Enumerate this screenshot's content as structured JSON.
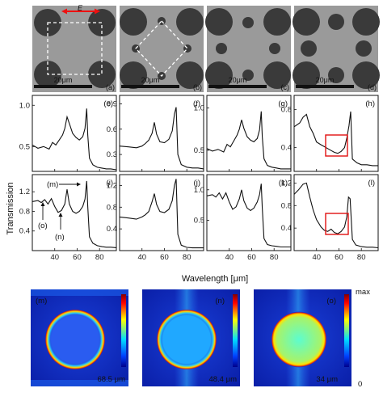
{
  "sem_panels": [
    {
      "tag": "(a)",
      "scale": "20μm",
      "e_label": "E"
    },
    {
      "tag": "(b)",
      "scale": "20μm"
    },
    {
      "tag": "(c)",
      "scale": "20μm"
    },
    {
      "tag": "(d)",
      "scale": "20μm"
    }
  ],
  "axis": {
    "y_title": "Transmission",
    "x_title": "Wavelength [μm]",
    "x_ticks": [
      "40",
      "60",
      "80"
    ]
  },
  "chart_data": [
    {
      "id": "e",
      "tag": "(e)",
      "type": "line",
      "xlim": [
        20,
        95
      ],
      "ylim": [
        0.2,
        1.12
      ],
      "yticks": [
        0.5,
        1.0
      ],
      "x": [
        20,
        25,
        30,
        35,
        38,
        41,
        44,
        47,
        49,
        51,
        53,
        56,
        59,
        62,
        65,
        67,
        68.5,
        69.5,
        71,
        74,
        78,
        82,
        86,
        90,
        95
      ],
      "y": [
        0.52,
        0.48,
        0.5,
        0.47,
        0.55,
        0.52,
        0.58,
        0.64,
        0.72,
        0.86,
        0.78,
        0.66,
        0.61,
        0.58,
        0.62,
        0.72,
        0.96,
        0.64,
        0.36,
        0.28,
        0.25,
        0.24,
        0.23,
        0.23,
        0.22
      ]
    },
    {
      "id": "f",
      "tag": "(f)",
      "type": "line",
      "xlim": [
        20,
        95
      ],
      "ylim": [
        0.1,
        1.0
      ],
      "yticks": [
        0.3,
        0.6,
        0.9
      ],
      "x": [
        20,
        28,
        35,
        40,
        43,
        46,
        49,
        51,
        53,
        56,
        60,
        64,
        67,
        69,
        70.5,
        72,
        75,
        80,
        85,
        90,
        95
      ],
      "y": [
        0.4,
        0.39,
        0.38,
        0.4,
        0.43,
        0.47,
        0.55,
        0.68,
        0.54,
        0.45,
        0.44,
        0.48,
        0.58,
        0.78,
        0.86,
        0.3,
        0.18,
        0.15,
        0.14,
        0.14,
        0.13
      ]
    },
    {
      "id": "g",
      "tag": "(g)",
      "type": "line",
      "xlim": [
        20,
        95
      ],
      "ylim": [
        0.25,
        1.15
      ],
      "yticks": [
        0.5,
        1.0
      ],
      "x": [
        20,
        25,
        30,
        35,
        38,
        41,
        44,
        47,
        49,
        51,
        53,
        56,
        59,
        62,
        65,
        67,
        68.5,
        69.5,
        71,
        74,
        78,
        82,
        86,
        90,
        95
      ],
      "y": [
        0.52,
        0.49,
        0.51,
        0.48,
        0.57,
        0.54,
        0.61,
        0.68,
        0.75,
        0.86,
        0.76,
        0.66,
        0.62,
        0.6,
        0.64,
        0.74,
        0.96,
        0.66,
        0.4,
        0.32,
        0.3,
        0.29,
        0.28,
        0.28,
        0.28
      ]
    },
    {
      "id": "h",
      "tag": "(h)",
      "type": "line",
      "xlim": [
        20,
        95
      ],
      "ylim": [
        0.15,
        0.95
      ],
      "yticks": [
        0.4,
        0.8
      ],
      "x": [
        20,
        25,
        28,
        31,
        34,
        37,
        40,
        44,
        47,
        50,
        53,
        56,
        59,
        62,
        65,
        67,
        69,
        70.5,
        72,
        76,
        80,
        85,
        90,
        95
      ],
      "y": [
        0.62,
        0.66,
        0.72,
        0.75,
        0.62,
        0.55,
        0.46,
        0.43,
        0.41,
        0.39,
        0.37,
        0.35,
        0.34,
        0.36,
        0.4,
        0.5,
        0.63,
        0.78,
        0.28,
        0.24,
        0.22,
        0.22,
        0.21,
        0.21
      ]
    },
    {
      "id": "i",
      "tag": "(i)",
      "type": "line",
      "xlim": [
        20,
        95
      ],
      "ylim": [
        0.0,
        1.55
      ],
      "yticks": [
        0.4,
        0.8,
        1.2
      ],
      "x": [
        20,
        25,
        28,
        31,
        34,
        37,
        40,
        43,
        46,
        49,
        51,
        53,
        56,
        59,
        62,
        65,
        67,
        68.5,
        69.5,
        71,
        74,
        78,
        82,
        86,
        90,
        95
      ],
      "y": [
        1.0,
        1.02,
        0.98,
        1.04,
        0.95,
        1.06,
        0.9,
        0.78,
        0.82,
        0.95,
        1.25,
        0.95,
        0.8,
        0.76,
        0.8,
        0.9,
        1.05,
        1.42,
        0.9,
        0.28,
        0.15,
        0.1,
        0.08,
        0.07,
        0.07,
        0.06
      ],
      "annotations": [
        {
          "text": "(m)",
          "x": 70
        },
        {
          "text": "(n)",
          "x": 49
        },
        {
          "text": "(o)",
          "x": 31
        }
      ]
    },
    {
      "id": "j",
      "tag": "(j)",
      "type": "line",
      "xlim": [
        20,
        95
      ],
      "ylim": [
        0.0,
        1.4
      ],
      "yticks": [
        0.4,
        0.8,
        1.2
      ],
      "x": [
        20,
        28,
        35,
        40,
        43,
        46,
        49,
        51,
        53,
        56,
        60,
        64,
        67,
        69,
        70.5,
        72,
        75,
        80,
        85,
        90,
        95
      ],
      "y": [
        0.62,
        0.6,
        0.58,
        0.62,
        0.66,
        0.72,
        0.9,
        1.05,
        0.85,
        0.72,
        0.7,
        0.76,
        0.92,
        1.2,
        1.32,
        0.3,
        0.1,
        0.06,
        0.05,
        0.05,
        0.05
      ]
    },
    {
      "id": "k",
      "tag": "(k)",
      "type": "line",
      "xlim": [
        20,
        95
      ],
      "ylim": [
        0.0,
        1.25
      ],
      "yticks": [
        0.5,
        1.0
      ],
      "x": [
        20,
        25,
        28,
        31,
        34,
        37,
        40,
        43,
        46,
        49,
        51,
        53,
        56,
        59,
        62,
        65,
        67,
        68.5,
        69.5,
        71,
        74,
        78,
        82,
        86,
        90,
        95
      ],
      "y": [
        0.9,
        0.92,
        0.88,
        0.95,
        0.85,
        0.95,
        0.8,
        0.68,
        0.72,
        0.85,
        1.0,
        0.82,
        0.7,
        0.66,
        0.7,
        0.8,
        0.92,
        1.1,
        0.7,
        0.2,
        0.1,
        0.08,
        0.07,
        0.06,
        0.06,
        0.06
      ]
    },
    {
      "id": "l",
      "tag": "(l)",
      "type": "line",
      "xlim": [
        20,
        95
      ],
      "ylim": [
        0.0,
        1.35
      ],
      "yticks": [
        0.4,
        0.8,
        1.2
      ],
      "x": [
        20,
        24,
        28,
        31,
        34,
        37,
        40,
        44,
        47,
        50,
        53,
        56,
        59,
        62,
        65,
        67,
        68.5,
        70,
        72,
        75,
        80,
        85,
        90,
        95
      ],
      "y": [
        1.0,
        1.08,
        1.18,
        1.2,
        0.95,
        0.72,
        0.55,
        0.42,
        0.36,
        0.34,
        0.38,
        0.32,
        0.3,
        0.34,
        0.42,
        0.6,
        0.95,
        0.92,
        0.2,
        0.1,
        0.07,
        0.06,
        0.06,
        0.05
      ]
    }
  ],
  "field_panels": [
    {
      "tag": "(m)",
      "wavelength": "68.5 μm"
    },
    {
      "tag": "(n)",
      "wavelength": "48.4 μm"
    },
    {
      "tag": "(o)",
      "wavelength": "34 μm"
    }
  ],
  "colorbar": {
    "max_label": "max",
    "min_label": "0"
  }
}
